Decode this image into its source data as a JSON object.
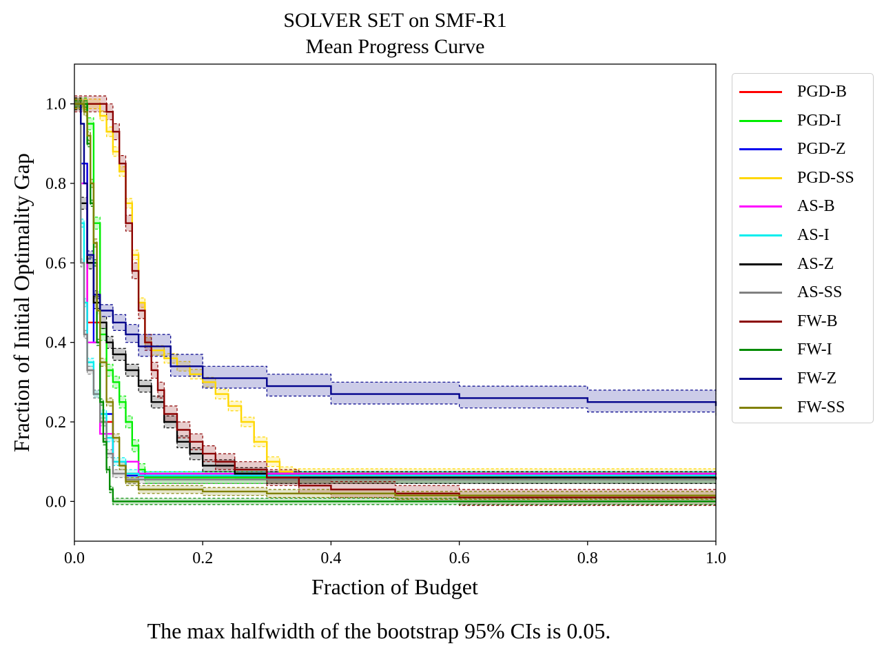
{
  "chart_data": {
    "type": "line",
    "title": "SOLVER SET on SMF-R1",
    "subtitle": "Mean Progress Curve",
    "xlabel": "Fraction of Budget",
    "ylabel": "Fraction of Initial Optimality Gap",
    "xlim": [
      0.0,
      1.0
    ],
    "ylim": [
      -0.1,
      1.1
    ],
    "xticks": [
      0.0,
      0.2,
      0.4,
      0.6,
      0.8,
      1.0
    ],
    "yticks": [
      0.0,
      0.2,
      0.4,
      0.6,
      0.8,
      1.0
    ],
    "xtick_labels": [
      "0.0",
      "0.2",
      "0.4",
      "0.6",
      "0.8",
      "1.0"
    ],
    "ytick_labels": [
      "0.0",
      "0.2",
      "0.4",
      "0.6",
      "0.8",
      "1.0"
    ],
    "grid": false,
    "legend_position": "outside-right",
    "footnote": "The max halfwidth of the bootstrap 95% CIs is 0.05.",
    "series": [
      {
        "name": "PGD-B",
        "color": "#ff0000",
        "ci": 0.0,
        "x": [
          0,
          0.005,
          0.01,
          0.02,
          0.04,
          0.06,
          0.08,
          0.1,
          1.0
        ],
        "y": [
          1,
          1,
          0.85,
          0.45,
          0.2,
          0.1,
          0.07,
          0.063,
          0.063
        ]
      },
      {
        "name": "PGD-I",
        "color": "#00ee00",
        "ci": 0.015,
        "x": [
          0,
          0.01,
          0.02,
          0.03,
          0.04,
          0.05,
          0.06,
          0.07,
          0.08,
          0.09,
          0.1,
          0.11,
          1.0
        ],
        "y": [
          1,
          1,
          0.95,
          0.7,
          0.42,
          0.33,
          0.3,
          0.25,
          0.2,
          0.14,
          0.08,
          0.06,
          0.06
        ]
      },
      {
        "name": "PGD-Z",
        "color": "#0000ee",
        "ci": 0.0,
        "x": [
          0,
          0.005,
          0.01,
          0.02,
          0.03,
          0.04,
          0.06,
          0.08,
          1.0
        ],
        "y": [
          1,
          1,
          0.85,
          0.6,
          0.4,
          0.22,
          0.1,
          0.065,
          0.065
        ]
      },
      {
        "name": "PGD-SS",
        "color": "#ffd700",
        "ci": 0.012,
        "x": [
          0,
          0.01,
          0.03,
          0.04,
          0.05,
          0.06,
          0.07,
          0.08,
          0.09,
          0.1,
          0.11,
          0.12,
          0.14,
          0.16,
          0.18,
          0.2,
          0.22,
          0.24,
          0.26,
          0.28,
          0.3,
          0.32,
          0.34,
          0.4,
          0.5,
          1.0
        ],
        "y": [
          1,
          1,
          1,
          0.97,
          0.93,
          0.88,
          0.83,
          0.75,
          0.62,
          0.5,
          0.4,
          0.38,
          0.36,
          0.34,
          0.32,
          0.3,
          0.27,
          0.24,
          0.2,
          0.15,
          0.1,
          0.075,
          0.07,
          0.07,
          0.07,
          0.07
        ]
      },
      {
        "name": "AS-B",
        "color": "#ff00ff",
        "ci": 0.0,
        "x": [
          0,
          0.005,
          0.01,
          0.02,
          0.04,
          0.06,
          0.1,
          1.0
        ],
        "y": [
          1,
          1,
          0.8,
          0.4,
          0.17,
          0.1,
          0.07,
          0.067
        ]
      },
      {
        "name": "AS-I",
        "color": "#00eeee",
        "ci": 0.01,
        "x": [
          0,
          0.005,
          0.01,
          0.015,
          0.02,
          0.03,
          0.04,
          0.05,
          0.06,
          0.08,
          0.1,
          1.0
        ],
        "y": [
          1,
          1,
          0.7,
          0.5,
          0.35,
          0.27,
          0.22,
          0.16,
          0.1,
          0.07,
          0.065,
          0.065
        ]
      },
      {
        "name": "AS-Z",
        "color": "#000000",
        "ci": 0.015,
        "x": [
          0,
          0.005,
          0.01,
          0.02,
          0.03,
          0.04,
          0.05,
          0.06,
          0.08,
          0.1,
          0.12,
          0.14,
          0.16,
          0.18,
          0.2,
          0.25,
          0.3,
          1.0
        ],
        "y": [
          1,
          1,
          0.75,
          0.6,
          0.5,
          0.45,
          0.4,
          0.37,
          0.33,
          0.29,
          0.25,
          0.2,
          0.15,
          0.12,
          0.09,
          0.07,
          0.06,
          0.055
        ]
      },
      {
        "name": "AS-SS",
        "color": "#808080",
        "ci": 0.01,
        "x": [
          0,
          0.005,
          0.01,
          0.015,
          0.02,
          0.03,
          0.04,
          0.05,
          0.06,
          0.08,
          0.1,
          1.0
        ],
        "y": [
          1,
          1,
          0.6,
          0.42,
          0.33,
          0.27,
          0.2,
          0.12,
          0.07,
          0.055,
          0.055,
          0.055
        ]
      },
      {
        "name": "FW-B",
        "color": "#8b0000",
        "ci": 0.02,
        "x": [
          0,
          0.01,
          0.02,
          0.04,
          0.05,
          0.06,
          0.07,
          0.08,
          0.09,
          0.1,
          0.11,
          0.12,
          0.13,
          0.14,
          0.16,
          0.18,
          0.2,
          0.22,
          0.25,
          0.3,
          0.35,
          0.4,
          0.5,
          0.6,
          0.7,
          1.0
        ],
        "y": [
          1,
          1,
          1,
          1,
          0.98,
          0.93,
          0.85,
          0.7,
          0.58,
          0.48,
          0.4,
          0.33,
          0.28,
          0.22,
          0.18,
          0.15,
          0.12,
          0.1,
          0.08,
          0.06,
          0.04,
          0.03,
          0.02,
          0.01,
          0.01,
          0.01
        ]
      },
      {
        "name": "FW-I",
        "color": "#008b00",
        "ci": 0.008,
        "x": [
          0,
          0.01,
          0.02,
          0.025,
          0.03,
          0.035,
          0.04,
          0.045,
          0.05,
          0.055,
          0.06,
          1.0
        ],
        "y": [
          1,
          1,
          0.9,
          0.75,
          0.6,
          0.4,
          0.25,
          0.15,
          0.08,
          0.03,
          0.0,
          0.0
        ]
      },
      {
        "name": "FW-Z",
        "color": "#00008b",
        "ci_lo": [
          0,
          0,
          0,
          0.01,
          0.01,
          0.015,
          0.02,
          0.02,
          0.025,
          0.025,
          0.025,
          0.025,
          0.025,
          0.025,
          0.025,
          0.025
        ],
        "ci_hi": [
          0,
          0,
          0,
          0.01,
          0.01,
          0.015,
          0.02,
          0.025,
          0.03,
          0.03,
          0.03,
          0.03,
          0.03,
          0.03,
          0.03,
          0.03
        ],
        "x": [
          0,
          0.01,
          0.015,
          0.02,
          0.03,
          0.04,
          0.06,
          0.08,
          0.1,
          0.15,
          0.2,
          0.3,
          0.4,
          0.6,
          0.8,
          1.0
        ],
        "y": [
          1,
          0.95,
          0.8,
          0.62,
          0.52,
          0.48,
          0.45,
          0.42,
          0.39,
          0.34,
          0.31,
          0.29,
          0.27,
          0.26,
          0.25,
          0.24
        ]
      },
      {
        "name": "FW-SS",
        "color": "#808000",
        "ci": 0.01,
        "x": [
          0,
          0.01,
          0.015,
          0.02,
          0.025,
          0.03,
          0.035,
          0.04,
          0.05,
          0.06,
          0.07,
          0.08,
          0.1,
          0.2,
          0.3,
          0.4,
          0.5,
          1.0
        ],
        "y": [
          1,
          1,
          0.98,
          0.92,
          0.8,
          0.65,
          0.48,
          0.35,
          0.25,
          0.16,
          0.09,
          0.05,
          0.03,
          0.025,
          0.02,
          0.02,
          0.015,
          0.015
        ]
      }
    ]
  }
}
